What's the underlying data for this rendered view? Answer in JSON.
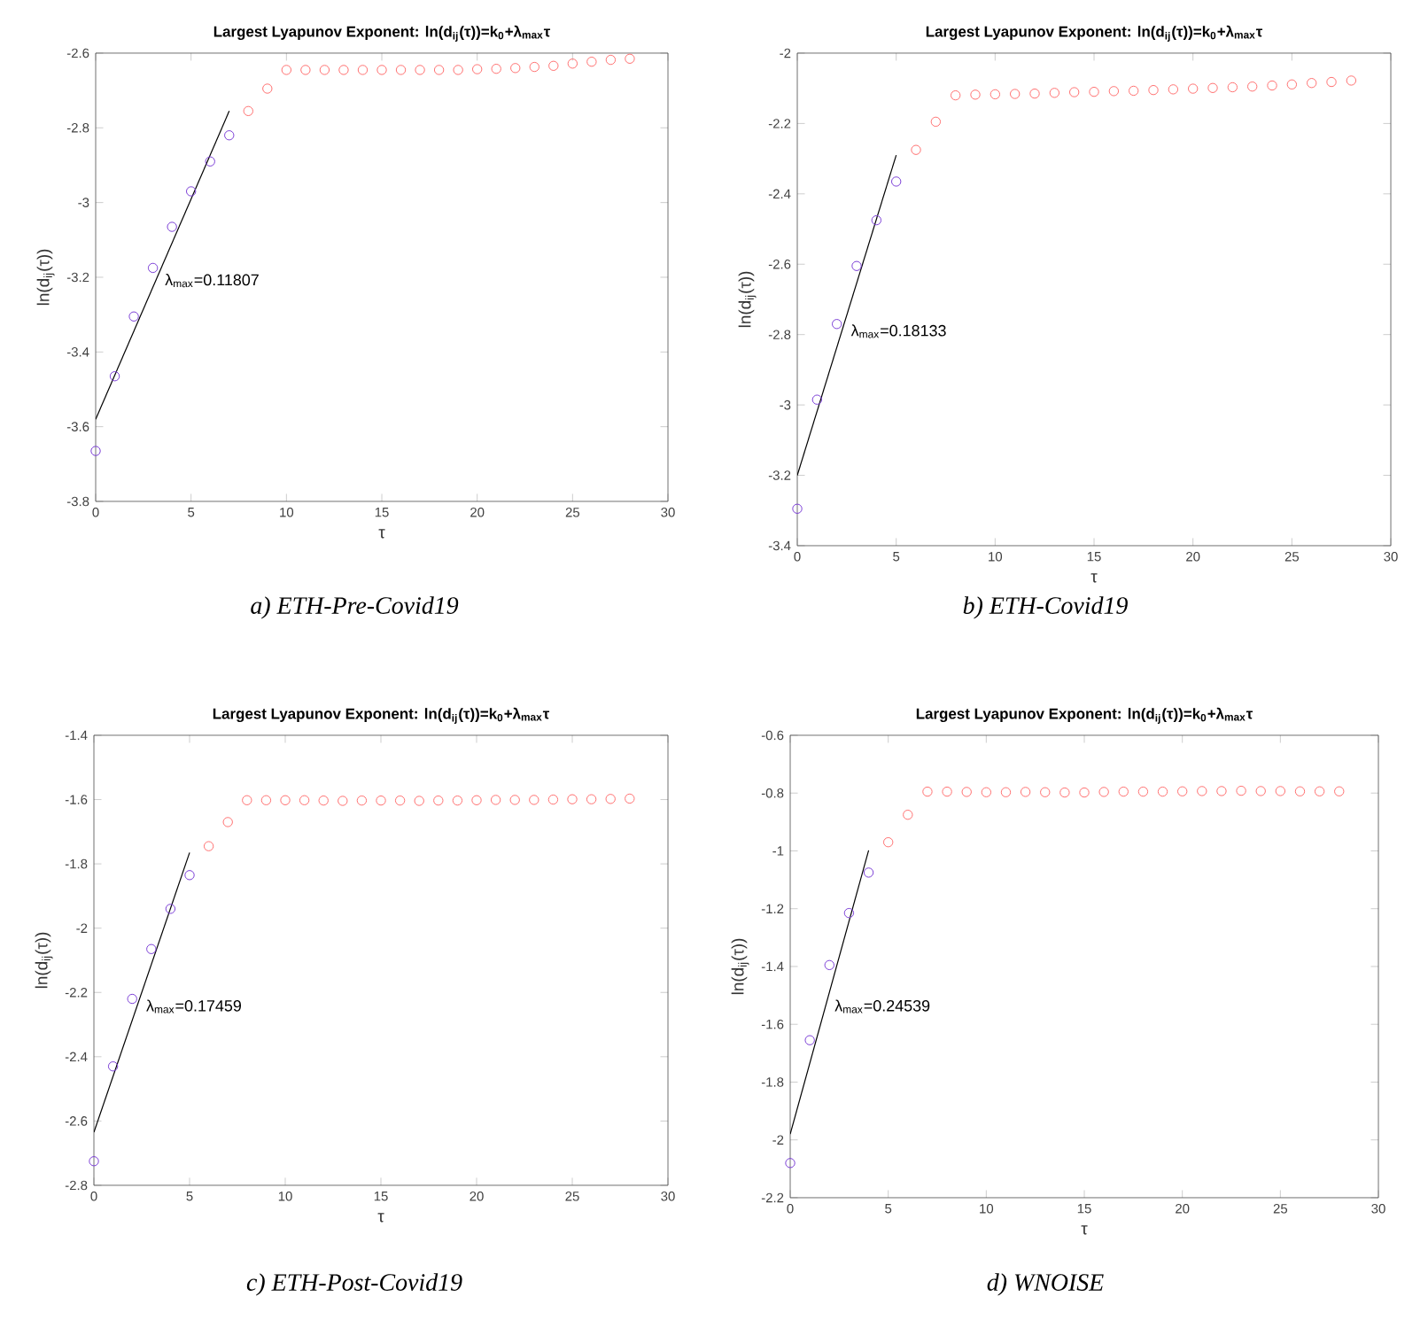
{
  "chart_data": [
    {
      "type": "scatter",
      "title": "Largest Lyapunov Exponent: ln(d$_{ij}$(τ))=k$_{0}$+λ$_{max}$τ",
      "xlabel": "τ",
      "ylabel": "ln(d$_{ij}$(τ))",
      "xlim": [
        0,
        30
      ],
      "xticks": [
        0,
        5,
        10,
        15,
        20,
        25,
        30
      ],
      "ylim": [
        -3.8,
        -2.6
      ],
      "yticks": [
        -3.8,
        -3.6,
        -3.4,
        -3.2,
        -3,
        -2.8,
        -2.6
      ],
      "series": [
        {
          "color": "#7b3fd6",
          "marker": "circle",
          "x": [
            0,
            1,
            2,
            3,
            4,
            5,
            6,
            7
          ],
          "values": [
            -3.665,
            -3.465,
            -3.305,
            -3.175,
            -3.065,
            -2.97,
            -2.89,
            -2.82
          ]
        },
        {
          "color": "#ff7070",
          "marker": "circle",
          "x": [
            8,
            9,
            10,
            11,
            12,
            13,
            14,
            15,
            16,
            17,
            18,
            19,
            20,
            21,
            22,
            23,
            24,
            25,
            26,
            27,
            28
          ],
          "values": [
            -2.755,
            -2.695,
            -2.645,
            -2.645,
            -2.645,
            -2.645,
            -2.645,
            -2.645,
            -2.645,
            -2.645,
            -2.645,
            -2.645,
            -2.643,
            -2.642,
            -2.64,
            -2.637,
            -2.634,
            -2.628,
            -2.623,
            -2.618,
            -2.615
          ]
        },
        {
          "type": "line",
          "color": "#000000",
          "x": [
            0,
            7
          ],
          "values": [
            -3.58,
            -2.755
          ]
        }
      ],
      "annotations": [
        "λ$_{max}$=0.11807",
        "a) ETH-Pre-Covid19"
      ]
    },
    {
      "type": "scatter",
      "title": "Largest Lyapunov Exponent: ln(d$_{ij}$(τ))=k$_{0}$+λ$_{max}$τ",
      "xlabel": "τ",
      "ylabel": "ln(d$_{ij}$(τ))",
      "xlim": [
        0,
        30
      ],
      "xticks": [
        0,
        5,
        10,
        15,
        20,
        25,
        30
      ],
      "ylim": [
        -3.4,
        -2
      ],
      "yticks": [
        -3.4,
        -3.2,
        -3,
        -2.8,
        -2.6,
        -2.4,
        -2.2,
        -2
      ],
      "series": [
        {
          "color": "#7b3fd6",
          "marker": "circle",
          "x": [
            0,
            1,
            2,
            3,
            4,
            5
          ],
          "values": [
            -3.295,
            -2.985,
            -2.77,
            -2.605,
            -2.475,
            -2.365
          ]
        },
        {
          "color": "#ff7070",
          "marker": "circle",
          "x": [
            6,
            7,
            8,
            9,
            10,
            11,
            12,
            13,
            14,
            15,
            16,
            17,
            18,
            19,
            20,
            21,
            22,
            23,
            24,
            25,
            26,
            27,
            28
          ],
          "values": [
            -2.275,
            -2.195,
            -2.12,
            -2.118,
            -2.117,
            -2.116,
            -2.115,
            -2.113,
            -2.111,
            -2.11,
            -2.108,
            -2.107,
            -2.105,
            -2.103,
            -2.101,
            -2.099,
            -2.097,
            -2.095,
            -2.092,
            -2.089,
            -2.085,
            -2.082,
            -2.078
          ]
        },
        {
          "type": "line",
          "color": "#000000",
          "x": [
            0,
            5
          ],
          "values": [
            -3.2,
            -2.29
          ]
        }
      ],
      "annotations": [
        "λ$_{max}$=0.18133",
        "b) ETH-Covid19"
      ]
    },
    {
      "type": "scatter",
      "title": "Largest Lyapunov Exponent: ln(d$_{ij}$(τ))=k$_{0}$+λ$_{max}$τ",
      "xlabel": "τ",
      "ylabel": "ln(d$_{ij}$(τ))",
      "xlim": [
        0,
        30
      ],
      "xticks": [
        0,
        5,
        10,
        15,
        20,
        25,
        30
      ],
      "ylim": [
        -2.8,
        -1.4
      ],
      "yticks": [
        -2.8,
        -2.6,
        -2.4,
        -2.2,
        -2,
        -1.8,
        -1.6,
        -1.4
      ],
      "series": [
        {
          "color": "#7b3fd6",
          "marker": "circle",
          "x": [
            0,
            1,
            2,
            3,
            4,
            5
          ],
          "values": [
            -2.725,
            -2.43,
            -2.22,
            -2.065,
            -1.94,
            -1.835
          ]
        },
        {
          "color": "#ff7070",
          "marker": "circle",
          "x": [
            6,
            7,
            8,
            9,
            10,
            11,
            12,
            13,
            14,
            15,
            16,
            17,
            18,
            19,
            20,
            21,
            22,
            23,
            24,
            25,
            26,
            27,
            28
          ],
          "values": [
            -1.745,
            -1.67,
            -1.602,
            -1.602,
            -1.602,
            -1.602,
            -1.603,
            -1.604,
            -1.603,
            -1.603,
            -1.603,
            -1.604,
            -1.603,
            -1.603,
            -1.602,
            -1.601,
            -1.601,
            -1.601,
            -1.6,
            -1.599,
            -1.599,
            -1.598,
            -1.597
          ]
        },
        {
          "type": "line",
          "color": "#000000",
          "x": [
            0,
            5
          ],
          "values": [
            -2.635,
            -1.765
          ]
        }
      ],
      "annotations": [
        "λ$_{max}$=0.17459",
        "c) ETH-Post-Covid19"
      ]
    },
    {
      "type": "scatter",
      "title": "Largest Lyapunov Exponent: ln(d$_{ij}$(τ))=k$_{0}$+λ$_{max}$τ",
      "xlabel": "τ",
      "ylabel": "ln(d$_{ij}$(τ))",
      "xlim": [
        0,
        30
      ],
      "xticks": [
        0,
        5,
        10,
        15,
        20,
        25,
        30
      ],
      "ylim": [
        -2.2,
        -0.6
      ],
      "yticks": [
        -2.2,
        -2,
        -1.8,
        -1.6,
        -1.4,
        -1.2,
        -1,
        -0.8,
        -0.6
      ],
      "series": [
        {
          "color": "#7b3fd6",
          "marker": "circle",
          "x": [
            0,
            1,
            2,
            3,
            4
          ],
          "values": [
            -2.08,
            -1.655,
            -1.395,
            -1.215,
            -1.075
          ]
        },
        {
          "color": "#ff7070",
          "marker": "circle",
          "x": [
            5,
            6,
            7,
            8,
            9,
            10,
            11,
            12,
            13,
            14,
            15,
            16,
            17,
            18,
            19,
            20,
            21,
            22,
            23,
            24,
            25,
            26,
            27,
            28
          ],
          "values": [
            -0.97,
            -0.875,
            -0.795,
            -0.795,
            -0.796,
            -0.797,
            -0.797,
            -0.796,
            -0.797,
            -0.798,
            -0.798,
            -0.796,
            -0.795,
            -0.795,
            -0.795,
            -0.794,
            -0.793,
            -0.793,
            -0.792,
            -0.793,
            -0.793,
            -0.794,
            -0.794,
            -0.794
          ]
        },
        {
          "type": "line",
          "color": "#000000",
          "x": [
            0,
            4
          ],
          "values": [
            -1.98,
            -0.998
          ]
        }
      ],
      "annotations": [
        "λ$_{max}$=0.24539",
        "d) WNOISE"
      ]
    }
  ]
}
